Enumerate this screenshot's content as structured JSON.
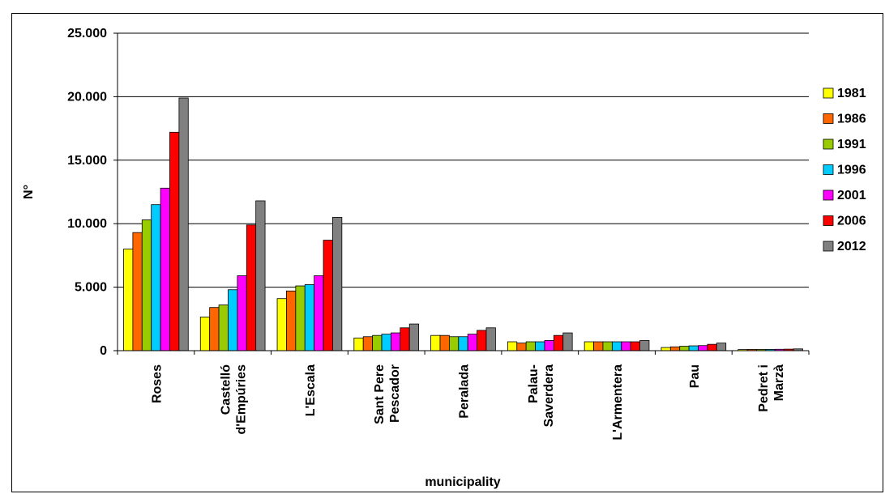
{
  "chart_data": {
    "type": "bar",
    "title": "",
    "xlabel": "municipality",
    "ylabel": "N°",
    "ylim": [
      0,
      25000
    ],
    "yticks": [
      0,
      5000,
      10000,
      15000,
      20000,
      25000
    ],
    "ytick_labels": [
      "0",
      "5.000",
      "10.000",
      "15.000",
      "20.000",
      "25.000"
    ],
    "grid": true,
    "legend_position": "right",
    "categories": [
      [
        "Roses"
      ],
      [
        "Castelló",
        "d'Empúries"
      ],
      [
        "L'Escala"
      ],
      [
        "Sant Pere",
        "Pescador"
      ],
      [
        "Peralada"
      ],
      [
        "Palau-",
        "Saverdera"
      ],
      [
        "L'Armentera"
      ],
      [
        "Pau"
      ],
      [
        "Pedret i",
        "Marzà"
      ]
    ],
    "series": [
      {
        "name": "1981",
        "color": "#FFFF00",
        "values": [
          8000,
          2650,
          4100,
          1000,
          1200,
          700,
          700,
          250,
          90
        ]
      },
      {
        "name": "1986",
        "color": "#FF6600",
        "values": [
          9300,
          3400,
          4700,
          1100,
          1200,
          600,
          700,
          300,
          100
        ]
      },
      {
        "name": "1991",
        "color": "#99CC00",
        "values": [
          10300,
          3600,
          5100,
          1200,
          1100,
          700,
          700,
          350,
          100
        ]
      },
      {
        "name": "1996",
        "color": "#00CCFF",
        "values": [
          11500,
          4800,
          5200,
          1300,
          1100,
          700,
          700,
          380,
          100
        ]
      },
      {
        "name": "2001",
        "color": "#FF00FF",
        "values": [
          12800,
          5900,
          5900,
          1400,
          1300,
          800,
          700,
          400,
          110
        ]
      },
      {
        "name": "2006",
        "color": "#FF0000",
        "values": [
          17200,
          9900,
          8700,
          1800,
          1600,
          1200,
          700,
          500,
          120
        ]
      },
      {
        "name": "2012",
        "color": "#808080",
        "values": [
          19900,
          11800,
          10500,
          2100,
          1800,
          1400,
          800,
          600,
          140
        ]
      }
    ]
  }
}
